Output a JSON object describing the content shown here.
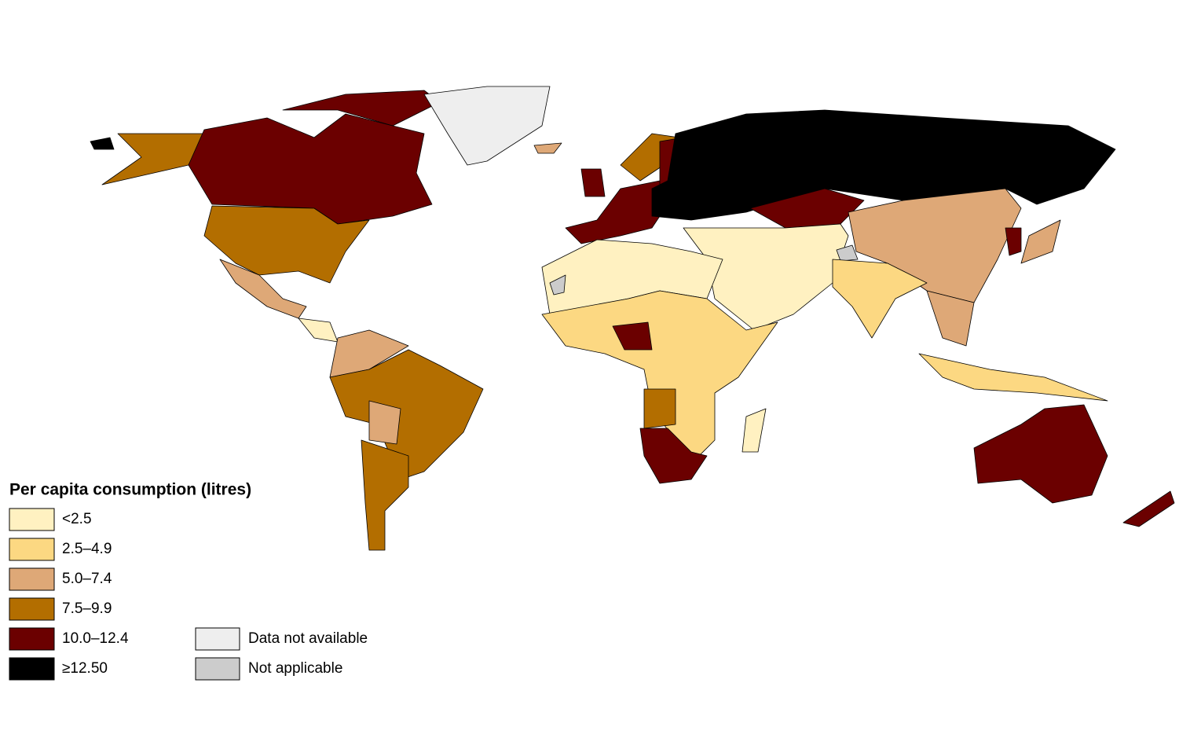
{
  "legend": {
    "title": "Per capita consumption (litres)",
    "classes": [
      {
        "label": "<2.5",
        "color": "#fff1c1"
      },
      {
        "label": "2.5–4.9",
        "color": "#fcd882"
      },
      {
        "label": "5.0–7.4",
        "color": "#dea877"
      },
      {
        "label": "7.5–9.9",
        "color": "#b36e00"
      },
      {
        "label": "10.0–12.4",
        "color": "#6b0000"
      },
      {
        "label": "≥12.50",
        "color": "#000000"
      }
    ],
    "other": [
      {
        "label": "Data not available",
        "color": "#eeeeee"
      },
      {
        "label": "Not applicable",
        "color": "#cccccc"
      }
    ]
  }
}
